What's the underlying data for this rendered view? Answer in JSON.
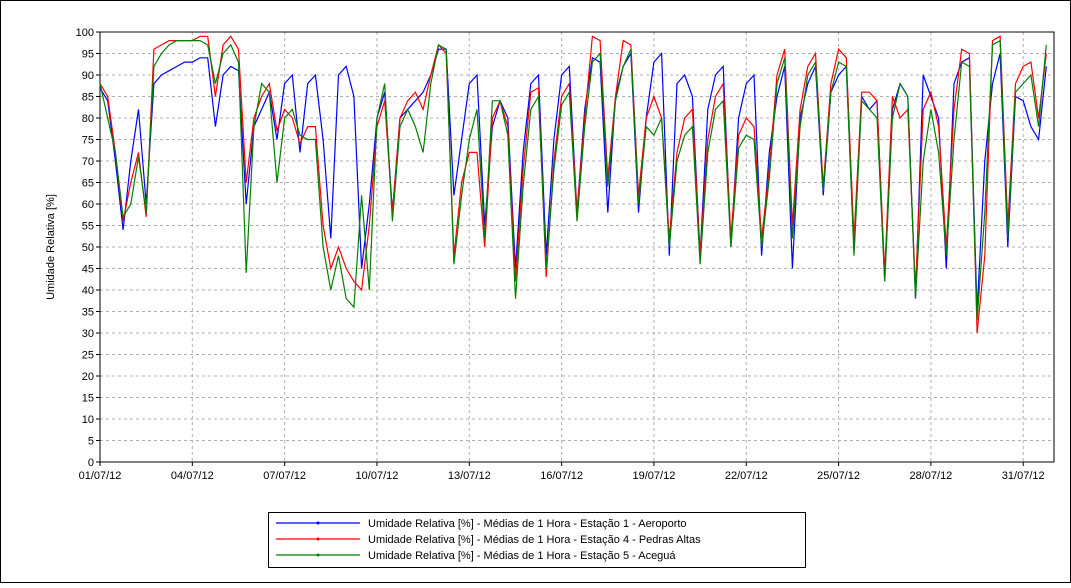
{
  "chart_data": {
    "type": "line",
    "y_label": "Umidade Relativa [%]",
    "xlim": [
      1,
      32
    ],
    "xticks": [
      {
        "value": 1,
        "label": "01/07/12"
      },
      {
        "value": 4,
        "label": "04/07/12"
      },
      {
        "value": 7,
        "label": "07/07/12"
      },
      {
        "value": 10,
        "label": "10/07/12"
      },
      {
        "value": 13,
        "label": "13/07/12"
      },
      {
        "value": 16,
        "label": "16/07/12"
      },
      {
        "value": 19,
        "label": "19/07/12"
      },
      {
        "value": 22,
        "label": "22/07/12"
      },
      {
        "value": 25,
        "label": "25/07/12"
      },
      {
        "value": 28,
        "label": "28/07/12"
      },
      {
        "value": 31,
        "label": "31/07/12"
      }
    ],
    "ylim": [
      0,
      100
    ],
    "yticks": [
      0,
      5,
      10,
      15,
      20,
      25,
      30,
      35,
      40,
      45,
      50,
      55,
      60,
      65,
      70,
      75,
      80,
      85,
      90,
      95,
      100
    ],
    "grid": true,
    "x": [
      1,
      1.25,
      1.5,
      1.75,
      2,
      2.25,
      2.5,
      2.75,
      3,
      3.25,
      3.5,
      3.75,
      4,
      4.25,
      4.5,
      4.75,
      5,
      5.25,
      5.5,
      5.75,
      6,
      6.25,
      6.5,
      6.75,
      7,
      7.25,
      7.5,
      7.75,
      8,
      8.25,
      8.5,
      8.75,
      9,
      9.25,
      9.5,
      9.75,
      10,
      10.25,
      10.5,
      10.75,
      11,
      11.25,
      11.5,
      11.75,
      12,
      12.25,
      12.5,
      12.75,
      13,
      13.25,
      13.5,
      13.75,
      14,
      14.25,
      14.5,
      14.75,
      15,
      15.25,
      15.5,
      15.75,
      16,
      16.25,
      16.5,
      16.75,
      17,
      17.25,
      17.5,
      17.75,
      18,
      18.25,
      18.5,
      18.75,
      19,
      19.25,
      19.5,
      19.75,
      20,
      20.25,
      20.5,
      20.75,
      21,
      21.25,
      21.5,
      21.75,
      22,
      22.25,
      22.5,
      22.75,
      23,
      23.25,
      23.5,
      23.75,
      24,
      24.25,
      24.5,
      24.75,
      25,
      25.25,
      25.5,
      25.75,
      26,
      26.25,
      26.5,
      26.75,
      27,
      27.25,
      27.5,
      27.75,
      28,
      28.25,
      28.5,
      28.75,
      29,
      29.25,
      29.5,
      29.75,
      30,
      30.25,
      30.5,
      30.75,
      31,
      31.25,
      31.5,
      31.75
    ],
    "series": [
      {
        "name": "Umidade Relativa [%] - Médias de 1 Hora - Estação 1 - Aeroporto",
        "color": "#0000ff",
        "values": [
          87,
          84,
          70,
          54,
          70,
          82,
          60,
          88,
          90,
          91,
          92,
          93,
          93,
          94,
          94,
          78,
          90,
          92,
          91,
          60,
          78,
          82,
          86,
          75,
          88,
          90,
          72,
          88,
          90,
          75,
          52,
          90,
          92,
          85,
          45,
          60,
          80,
          86,
          58,
          80,
          82,
          84,
          86,
          90,
          96,
          96,
          62,
          75,
          88,
          90,
          55,
          78,
          84,
          80,
          45,
          72,
          88,
          90,
          48,
          75,
          90,
          92,
          58,
          82,
          94,
          93,
          58,
          85,
          92,
          95,
          58,
          80,
          93,
          95,
          48,
          88,
          90,
          85,
          48,
          82,
          90,
          92,
          50,
          80,
          88,
          90,
          48,
          72,
          85,
          92,
          45,
          80,
          88,
          92,
          62,
          86,
          90,
          92,
          50,
          85,
          82,
          84,
          42,
          82,
          88,
          85,
          38,
          90,
          85,
          80,
          45,
          88,
          93,
          94,
          35,
          70,
          88,
          95,
          50,
          85,
          84,
          78,
          75,
          92
        ]
      },
      {
        "name": "Umidade Relativa [%] - Médias de 1 Hora - Estação 4 - Pedras Altas",
        "color": "#ff0000",
        "values": [
          88,
          85,
          72,
          56,
          65,
          72,
          57,
          96,
          97,
          98,
          98,
          98,
          98,
          99,
          99,
          85,
          97,
          99,
          96,
          65,
          80,
          85,
          88,
          77,
          82,
          80,
          74,
          78,
          78,
          55,
          45,
          50,
          45,
          42,
          40,
          55,
          78,
          84,
          58,
          80,
          84,
          86,
          82,
          90,
          97,
          95,
          48,
          65,
          72,
          72,
          50,
          80,
          84,
          78,
          42,
          68,
          86,
          87,
          43,
          70,
          85,
          88,
          58,
          80,
          99,
          98,
          66,
          85,
          98,
          97,
          62,
          80,
          85,
          80,
          52,
          72,
          80,
          82,
          48,
          75,
          85,
          88,
          52,
          76,
          80,
          78,
          52,
          68,
          90,
          96,
          55,
          82,
          92,
          95,
          64,
          88,
          96,
          94,
          52,
          86,
          86,
          84,
          44,
          85,
          80,
          82,
          40,
          82,
          86,
          78,
          50,
          82,
          96,
          95,
          30,
          48,
          98,
          99,
          55,
          88,
          92,
          93,
          80,
          95
        ]
      },
      {
        "name": "Umidade Relativa [%] - Médias de 1 Hora - Estação 5 - Aceguá",
        "color": "#008000",
        "values": [
          88,
          80,
          72,
          57,
          60,
          71,
          58,
          92,
          95,
          97,
          98,
          98,
          98,
          98,
          97,
          88,
          95,
          97,
          93,
          44,
          78,
          88,
          86,
          65,
          80,
          82,
          76,
          75,
          75,
          50,
          40,
          48,
          38,
          36,
          62,
          40,
          80,
          88,
          56,
          78,
          82,
          78,
          72,
          88,
          97,
          96,
          46,
          62,
          75,
          82,
          52,
          84,
          84,
          76,
          38,
          64,
          82,
          85,
          45,
          68,
          83,
          86,
          56,
          78,
          93,
          95,
          64,
          84,
          92,
          96,
          60,
          78,
          76,
          80,
          50,
          70,
          76,
          78,
          46,
          72,
          82,
          84,
          50,
          73,
          76,
          75,
          50,
          66,
          88,
          94,
          52,
          78,
          90,
          93,
          63,
          86,
          93,
          92,
          48,
          84,
          82,
          80,
          42,
          80,
          88,
          85,
          38,
          70,
          82,
          72,
          48,
          75,
          93,
          92,
          33,
          58,
          97,
          98,
          52,
          86,
          88,
          90,
          78,
          97
        ]
      }
    ]
  }
}
